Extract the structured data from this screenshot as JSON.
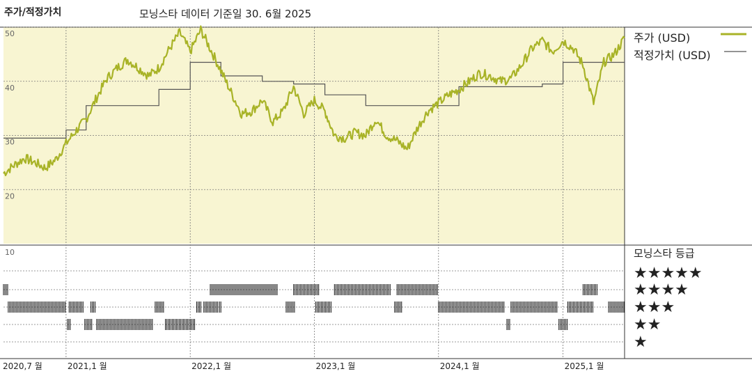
{
  "header": {
    "left_title": "주가/적정가치",
    "center_title": "모닝스타 데이터 기준일 30. 6월 2025"
  },
  "legend": {
    "price_label": "주가 (USD)",
    "fair_value_label": "적정가치 (USD)",
    "rating_title": "모닝스타 등급",
    "star_rows": [
      "★★★★★",
      "★★★★",
      "★★★",
      "★★",
      "★"
    ]
  },
  "colors": {
    "price": "#a8b327",
    "fair_value": "#555555",
    "plot_bg": "#f8f5d2",
    "grid": "#777777"
  },
  "chart_data": {
    "type": "line",
    "x_range": [
      "2020-07-01",
      "2025-07-01"
    ],
    "ylim": [
      20,
      50
    ],
    "y_ticks": [
      20,
      30,
      40,
      50
    ],
    "x_ticks": [
      "2020,7 월",
      "2021,1 월",
      "2022,1 월",
      "2023,1 월",
      "2024,1 월",
      "2025,1 월"
    ],
    "rating_axis_label": "10",
    "grid": true,
    "legend_position": "right",
    "series": [
      {
        "name": "주가 (USD)",
        "points": [
          [
            "2020-07-01",
            23.0
          ],
          [
            "2020-08-01",
            24.5
          ],
          [
            "2020-09-01",
            25.8
          ],
          [
            "2020-10-01",
            25.0
          ],
          [
            "2020-11-01",
            24.0
          ],
          [
            "2020-12-01",
            25.5
          ],
          [
            "2021-01-01",
            28.5
          ],
          [
            "2021-02-01",
            31.0
          ],
          [
            "2021-03-01",
            33.0
          ],
          [
            "2021-04-01",
            37.0
          ],
          [
            "2021-05-01",
            40.5
          ],
          [
            "2021-06-01",
            42.5
          ],
          [
            "2021-07-01",
            44.0
          ],
          [
            "2021-08-01",
            42.5
          ],
          [
            "2021-09-01",
            41.0
          ],
          [
            "2021-10-01",
            42.5
          ],
          [
            "2021-11-01",
            46.0
          ],
          [
            "2021-12-01",
            49.0
          ],
          [
            "2022-01-01",
            45.5
          ],
          [
            "2022-02-01",
            49.5
          ],
          [
            "2022-03-01",
            46.0
          ],
          [
            "2022-04-01",
            42.0
          ],
          [
            "2022-05-01",
            38.0
          ],
          [
            "2022-06-01",
            34.0
          ],
          [
            "2022-07-01",
            34.5
          ],
          [
            "2022-08-01",
            36.5
          ],
          [
            "2022-09-01",
            32.5
          ],
          [
            "2022-10-01",
            34.5
          ],
          [
            "2022-11-01",
            39.0
          ],
          [
            "2022-12-01",
            34.0
          ],
          [
            "2023-01-01",
            36.5
          ],
          [
            "2023-02-01",
            34.5
          ],
          [
            "2023-03-01",
            30.0
          ],
          [
            "2023-04-01",
            29.5
          ],
          [
            "2023-05-01",
            30.5
          ],
          [
            "2023-06-01",
            30.0
          ],
          [
            "2023-07-01",
            33.0
          ],
          [
            "2023-08-01",
            30.0
          ],
          [
            "2023-09-01",
            29.0
          ],
          [
            "2023-10-01",
            27.5
          ],
          [
            "2023-11-01",
            31.5
          ],
          [
            "2023-12-01",
            34.5
          ],
          [
            "2024-01-01",
            36.0
          ],
          [
            "2024-02-01",
            37.5
          ],
          [
            "2024-03-01",
            38.5
          ],
          [
            "2024-04-01",
            40.0
          ],
          [
            "2024-05-01",
            41.5
          ],
          [
            "2024-06-01",
            41.0
          ],
          [
            "2024-07-01",
            40.0
          ],
          [
            "2024-08-01",
            40.5
          ],
          [
            "2024-09-01",
            43.0
          ],
          [
            "2024-10-01",
            46.0
          ],
          [
            "2024-11-01",
            47.5
          ],
          [
            "2024-12-01",
            45.5
          ],
          [
            "2025-01-01",
            47.5
          ],
          [
            "2025-02-01",
            46.0
          ],
          [
            "2025-03-01",
            43.0
          ],
          [
            "2025-04-01",
            36.0
          ],
          [
            "2025-05-01",
            43.5
          ],
          [
            "2025-06-01",
            45.0
          ],
          [
            "2025-07-01",
            48.0
          ]
        ]
      },
      {
        "name": "적정가치 (USD)",
        "points": [
          [
            "2020-07-01",
            29.5
          ],
          [
            "2021-01-01",
            29.5
          ],
          [
            "2021-01-01",
            31.0
          ],
          [
            "2021-03-01",
            31.0
          ],
          [
            "2021-03-01",
            35.5
          ],
          [
            "2021-10-01",
            35.5
          ],
          [
            "2021-10-01",
            38.5
          ],
          [
            "2022-01-01",
            38.5
          ],
          [
            "2022-01-01",
            43.5
          ],
          [
            "2022-04-01",
            43.5
          ],
          [
            "2022-04-01",
            41.0
          ],
          [
            "2022-08-01",
            41.0
          ],
          [
            "2022-08-01",
            40.0
          ],
          [
            "2022-11-01",
            40.0
          ],
          [
            "2022-11-01",
            39.5
          ],
          [
            "2023-02-01",
            39.5
          ],
          [
            "2023-02-01",
            37.5
          ],
          [
            "2023-06-01",
            37.5
          ],
          [
            "2023-06-01",
            35.5
          ],
          [
            "2024-03-01",
            35.5
          ],
          [
            "2024-03-01",
            39.0
          ],
          [
            "2024-11-01",
            39.0
          ],
          [
            "2024-11-01",
            39.5
          ],
          [
            "2025-01-01",
            39.5
          ],
          [
            "2025-01-01",
            43.5
          ],
          [
            "2025-07-01",
            43.5
          ]
        ]
      }
    ],
    "rating_series": [
      {
        "stars": 5,
        "periods": []
      },
      {
        "stars": 4,
        "periods": [
          [
            "2020-07-01",
            "2020-07-15"
          ],
          [
            "2022-03-01",
            "2022-09-15"
          ],
          [
            "2022-11-01",
            "2023-01-15"
          ],
          [
            "2023-03-01",
            "2023-08-15"
          ],
          [
            "2023-09-01",
            "2023-12-31"
          ],
          [
            "2025-03-01",
            "2025-04-15"
          ]
        ]
      },
      {
        "stars": 3,
        "periods": [
          [
            "2020-07-15",
            "2020-12-31"
          ],
          [
            "2021-01-10",
            "2021-02-20"
          ],
          [
            "2021-03-15",
            "2021-03-31"
          ],
          [
            "2021-09-20",
            "2021-10-15"
          ],
          [
            "2022-01-20",
            "2022-02-05"
          ],
          [
            "2022-02-10",
            "2022-03-25"
          ],
          [
            "2022-03-28",
            "2022-04-05"
          ],
          [
            "2022-10-10",
            "2022-11-05"
          ],
          [
            "2023-01-05",
            "2023-02-20"
          ],
          [
            "2023-08-25",
            "2023-09-15"
          ],
          [
            "2024-01-01",
            "2024-07-15"
          ],
          [
            "2024-08-01",
            "2024-12-15"
          ],
          [
            "2025-01-15",
            "2025-04-01"
          ],
          [
            "2025-05-15",
            "2025-07-01"
          ]
        ]
      },
      {
        "stars": 2,
        "periods": [
          [
            "2021-01-05",
            "2021-01-15"
          ],
          [
            "2021-02-25",
            "2021-03-20"
          ],
          [
            "2021-04-01",
            "2021-09-15"
          ],
          [
            "2021-10-20",
            "2022-01-15"
          ],
          [
            "2024-07-20",
            "2024-08-01"
          ],
          [
            "2024-12-20",
            "2025-01-15"
          ]
        ]
      },
      {
        "stars": 1,
        "periods": []
      }
    ]
  }
}
